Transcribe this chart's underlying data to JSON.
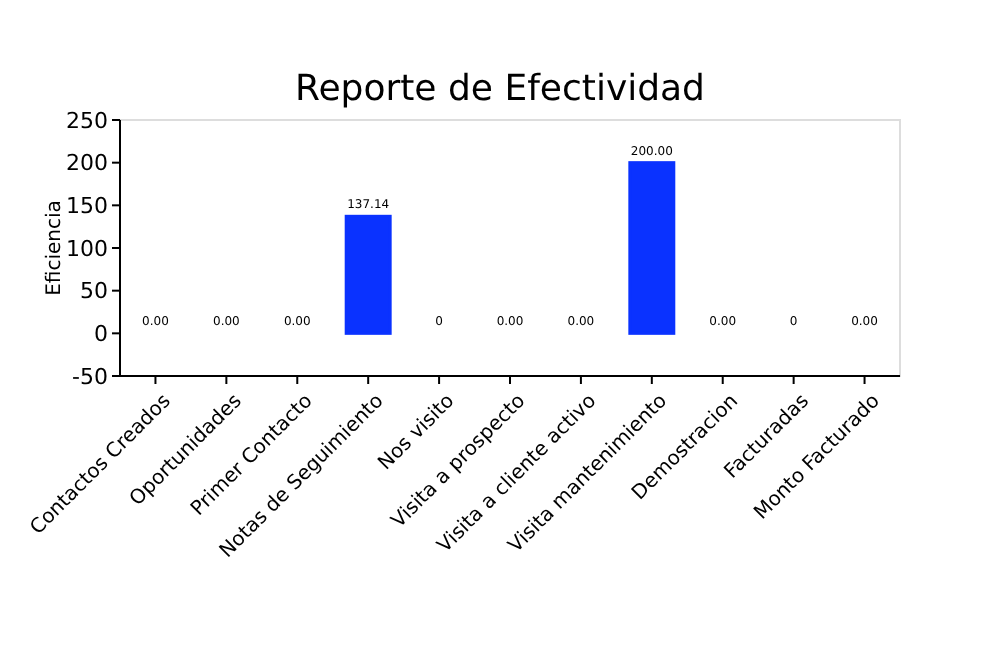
{
  "chart_data": {
    "type": "bar",
    "title": "Reporte de Efectividad",
    "ylabel": "Eficiencia",
    "categories": [
      "Contactos Creados",
      "Oportunidades",
      "Primer Contacto",
      "Notas de Seguimiento",
      "Nos visito",
      "Visita a prospecto",
      "Visita a cliente activo",
      "Visita mantenimiento",
      "Demostracion",
      "Facturadas",
      "Monto Facturado"
    ],
    "values": [
      0,
      0,
      0,
      137.14,
      0,
      0,
      0,
      200,
      0,
      0,
      0
    ],
    "colors": [
      "#ff6666",
      "#ff6666",
      "#ff6666",
      "#0a32ff",
      "#ff6666",
      "#ff6666",
      "#ff6666",
      "#0a32ff",
      "#ff6666",
      "#ff6666",
      "#ff6666"
    ],
    "value_labels": [
      "0.00",
      "0.00",
      "0.00",
      "137.14",
      "0",
      "0.00",
      "0.00",
      "200.00",
      "0.00",
      "0",
      "0.00"
    ],
    "ylim": [
      -50,
      250
    ],
    "yticks": [
      -50,
      0,
      50,
      100,
      150,
      200,
      250
    ],
    "grid": false
  }
}
